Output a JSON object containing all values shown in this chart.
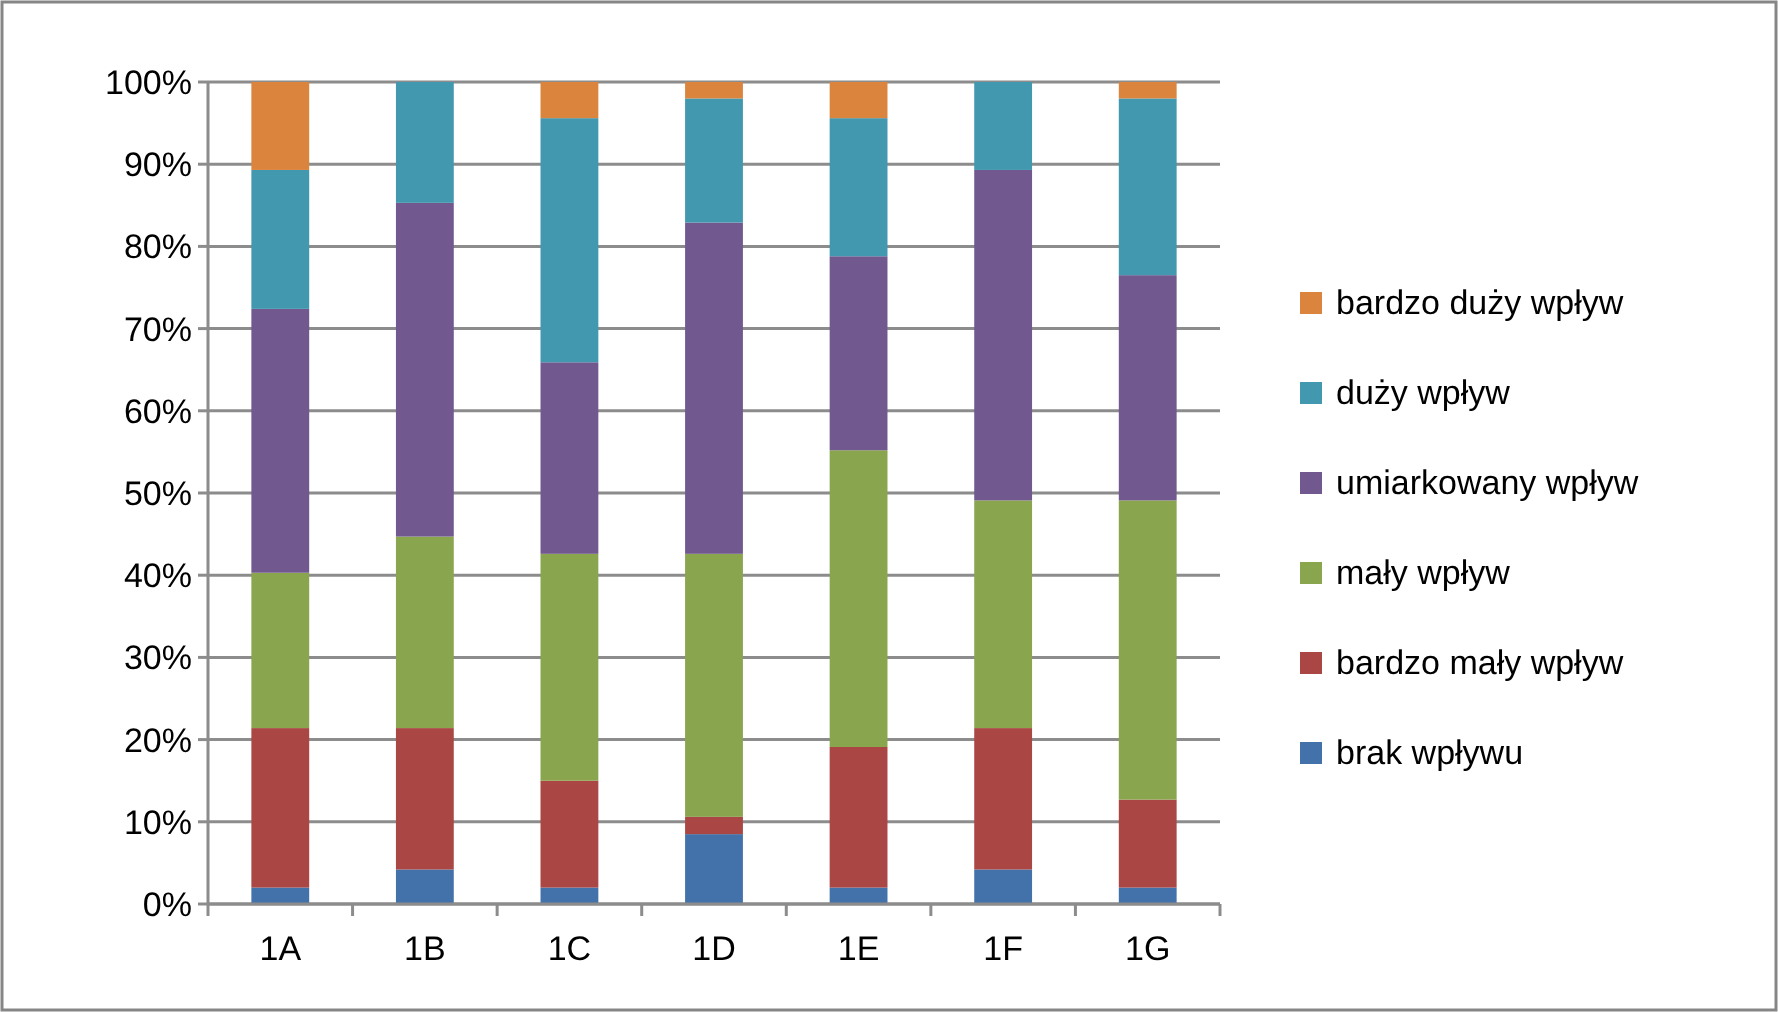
{
  "chart_data": {
    "type": "bar",
    "stacked": true,
    "categories": [
      "1A",
      "1B",
      "1C",
      "1D",
      "1E",
      "1F",
      "1G"
    ],
    "series": [
      {
        "name": "brak wpływu",
        "color": "#4372aa",
        "values": [
          2.0,
          4.2,
          2.0,
          8.5,
          2.0,
          4.2,
          2.0
        ]
      },
      {
        "name": "bardzo mały wpływ",
        "color": "#aa4643",
        "values": [
          19.4,
          17.2,
          13.0,
          2.1,
          17.1,
          17.2,
          10.7
        ]
      },
      {
        "name": "mały wpływ",
        "color": "#89a54e",
        "values": [
          18.9,
          23.3,
          27.6,
          32.0,
          36.1,
          27.7,
          36.4
        ]
      },
      {
        "name": "umiarkowany wpływ",
        "color": "#71588f",
        "values": [
          32.1,
          40.6,
          23.3,
          40.3,
          23.6,
          40.2,
          27.4
        ]
      },
      {
        "name": "duży wpływ",
        "color": "#4198af",
        "values": [
          16.9,
          14.7,
          29.7,
          15.1,
          16.8,
          10.7,
          21.5
        ]
      },
      {
        "name": "bardzo duży wpływ",
        "color": "#db843d",
        "values": [
          10.7,
          0,
          4.4,
          2.0,
          4.4,
          0,
          2.0
        ]
      }
    ],
    "ylim": [
      0,
      100
    ],
    "yticks": [
      {
        "value": 0,
        "label": "0%"
      },
      {
        "value": 10,
        "label": "10%"
      },
      {
        "value": 20,
        "label": "20%"
      },
      {
        "value": 30,
        "label": "30%"
      },
      {
        "value": 40,
        "label": "40%"
      },
      {
        "value": 50,
        "label": "50%"
      },
      {
        "value": 60,
        "label": "60%"
      },
      {
        "value": 70,
        "label": "70%"
      },
      {
        "value": 80,
        "label": "80%"
      },
      {
        "value": 90,
        "label": "90%"
      },
      {
        "value": 100,
        "label": "100%"
      }
    ],
    "grid": "y",
    "legend": "right"
  }
}
